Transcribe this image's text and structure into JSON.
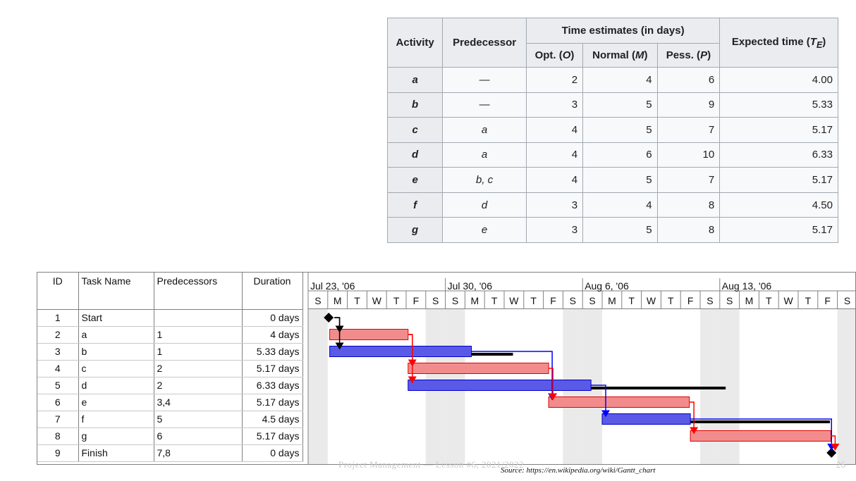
{
  "estimates_table": {
    "headers": {
      "activity": "Activity",
      "predecessor": "Predecessor",
      "time_estimates": "Time estimates (in days)",
      "opt": "Opt. (O)",
      "normal": "Normal (M)",
      "pess": "Pess. (P)",
      "expected": "Expected time (TE)"
    },
    "rows": [
      {
        "activity": "a",
        "predecessor": "—",
        "opt": "2",
        "normal": "4",
        "pess": "6",
        "expected": "4.00"
      },
      {
        "activity": "b",
        "predecessor": "—",
        "opt": "3",
        "normal": "5",
        "pess": "9",
        "expected": "5.33"
      },
      {
        "activity": "c",
        "predecessor": "a",
        "opt": "4",
        "normal": "5",
        "pess": "7",
        "expected": "5.17"
      },
      {
        "activity": "d",
        "predecessor": "a",
        "opt": "4",
        "normal": "6",
        "pess": "10",
        "expected": "6.33"
      },
      {
        "activity": "e",
        "predecessor": "b, c",
        "opt": "4",
        "normal": "5",
        "pess": "7",
        "expected": "5.17"
      },
      {
        "activity": "f",
        "predecessor": "d",
        "opt": "3",
        "normal": "4",
        "pess": "8",
        "expected": "4.50"
      },
      {
        "activity": "g",
        "predecessor": "e",
        "opt": "3",
        "normal": "5",
        "pess": "8",
        "expected": "5.17"
      }
    ]
  },
  "gantt": {
    "headers": {
      "id": "ID",
      "task_name": "Task Name",
      "predecessors": "Predecessors",
      "duration": "Duration"
    },
    "weeks": [
      "Jul 23, '06",
      "Jul 30, '06",
      "Aug 6, '06",
      "Aug 13, '06"
    ],
    "day_letters": [
      "S",
      "M",
      "T",
      "W",
      "T",
      "F",
      "S"
    ],
    "tasks": [
      {
        "id": "1",
        "name": "Start",
        "predecessors": "",
        "duration": "0 days",
        "kind": "milestone",
        "start_day": 1.05
      },
      {
        "id": "2",
        "name": "a",
        "predecessors": "1",
        "duration": "4 days",
        "kind": "critical",
        "start_day": 1.1,
        "end_day": 5.1
      },
      {
        "id": "3",
        "name": "b",
        "predecessors": "1",
        "duration": "5.33 days",
        "kind": "normal",
        "start_day": 1.1,
        "end_day": 8.33,
        "slack_end_day": 10.45
      },
      {
        "id": "4",
        "name": "c",
        "predecessors": "2",
        "duration": "5.17 days",
        "kind": "critical",
        "start_day": 5.1,
        "end_day": 12.27
      },
      {
        "id": "5",
        "name": "d",
        "predecessors": "2",
        "duration": "6.33 days",
        "kind": "normal",
        "start_day": 5.1,
        "end_day": 14.43,
        "slack_end_day": 21.3
      },
      {
        "id": "6",
        "name": "e",
        "predecessors": "3,4",
        "duration": "5.17 days",
        "kind": "critical",
        "start_day": 12.27,
        "end_day": 19.45
      },
      {
        "id": "7",
        "name": "f",
        "predecessors": "5",
        "duration": "4.5 days",
        "kind": "normal",
        "start_day": 15.0,
        "end_day": 19.5,
        "slack_end_day": 26.62
      },
      {
        "id": "8",
        "name": "g",
        "predecessors": "6",
        "duration": "5.17 days",
        "kind": "critical",
        "start_day": 19.5,
        "end_day": 26.67
      },
      {
        "id": "9",
        "name": "Finish",
        "predecessors": "7,8",
        "duration": "0 days",
        "kind": "milestone",
        "start_day": 26.7
      }
    ],
    "links": [
      {
        "from": 1,
        "to": 2,
        "color": "#000000"
      },
      {
        "from": 1,
        "to": 3,
        "color": "#000000"
      },
      {
        "from": 2,
        "to": 4,
        "color": "#ff0000"
      },
      {
        "from": 2,
        "to": 5,
        "color": "#ff0000"
      },
      {
        "from": 3,
        "to": 6,
        "color": "#0000ff"
      },
      {
        "from": 4,
        "to": 6,
        "color": "#ff0000"
      },
      {
        "from": 5,
        "to": 7,
        "color": "#0000ff"
      },
      {
        "from": 6,
        "to": 8,
        "color": "#ff0000"
      },
      {
        "from": 7,
        "to": 9,
        "color": "#0000ff"
      },
      {
        "from": 8,
        "to": 9,
        "color": "#ff0000"
      }
    ],
    "colors": {
      "critical_fill": "#f28c8c",
      "critical_border": "#e00000",
      "normal_fill": "#5a5ae6",
      "normal_border": "#0000c8",
      "slack": "#000000",
      "weekend": "#d9d9d9"
    }
  },
  "footer": {
    "faded_text": "Project Management — Lesson #6, 2021/2022",
    "faded_page": "26",
    "source": "Source: https://en.wikipedia.org/wiki/Gantt_chart"
  }
}
